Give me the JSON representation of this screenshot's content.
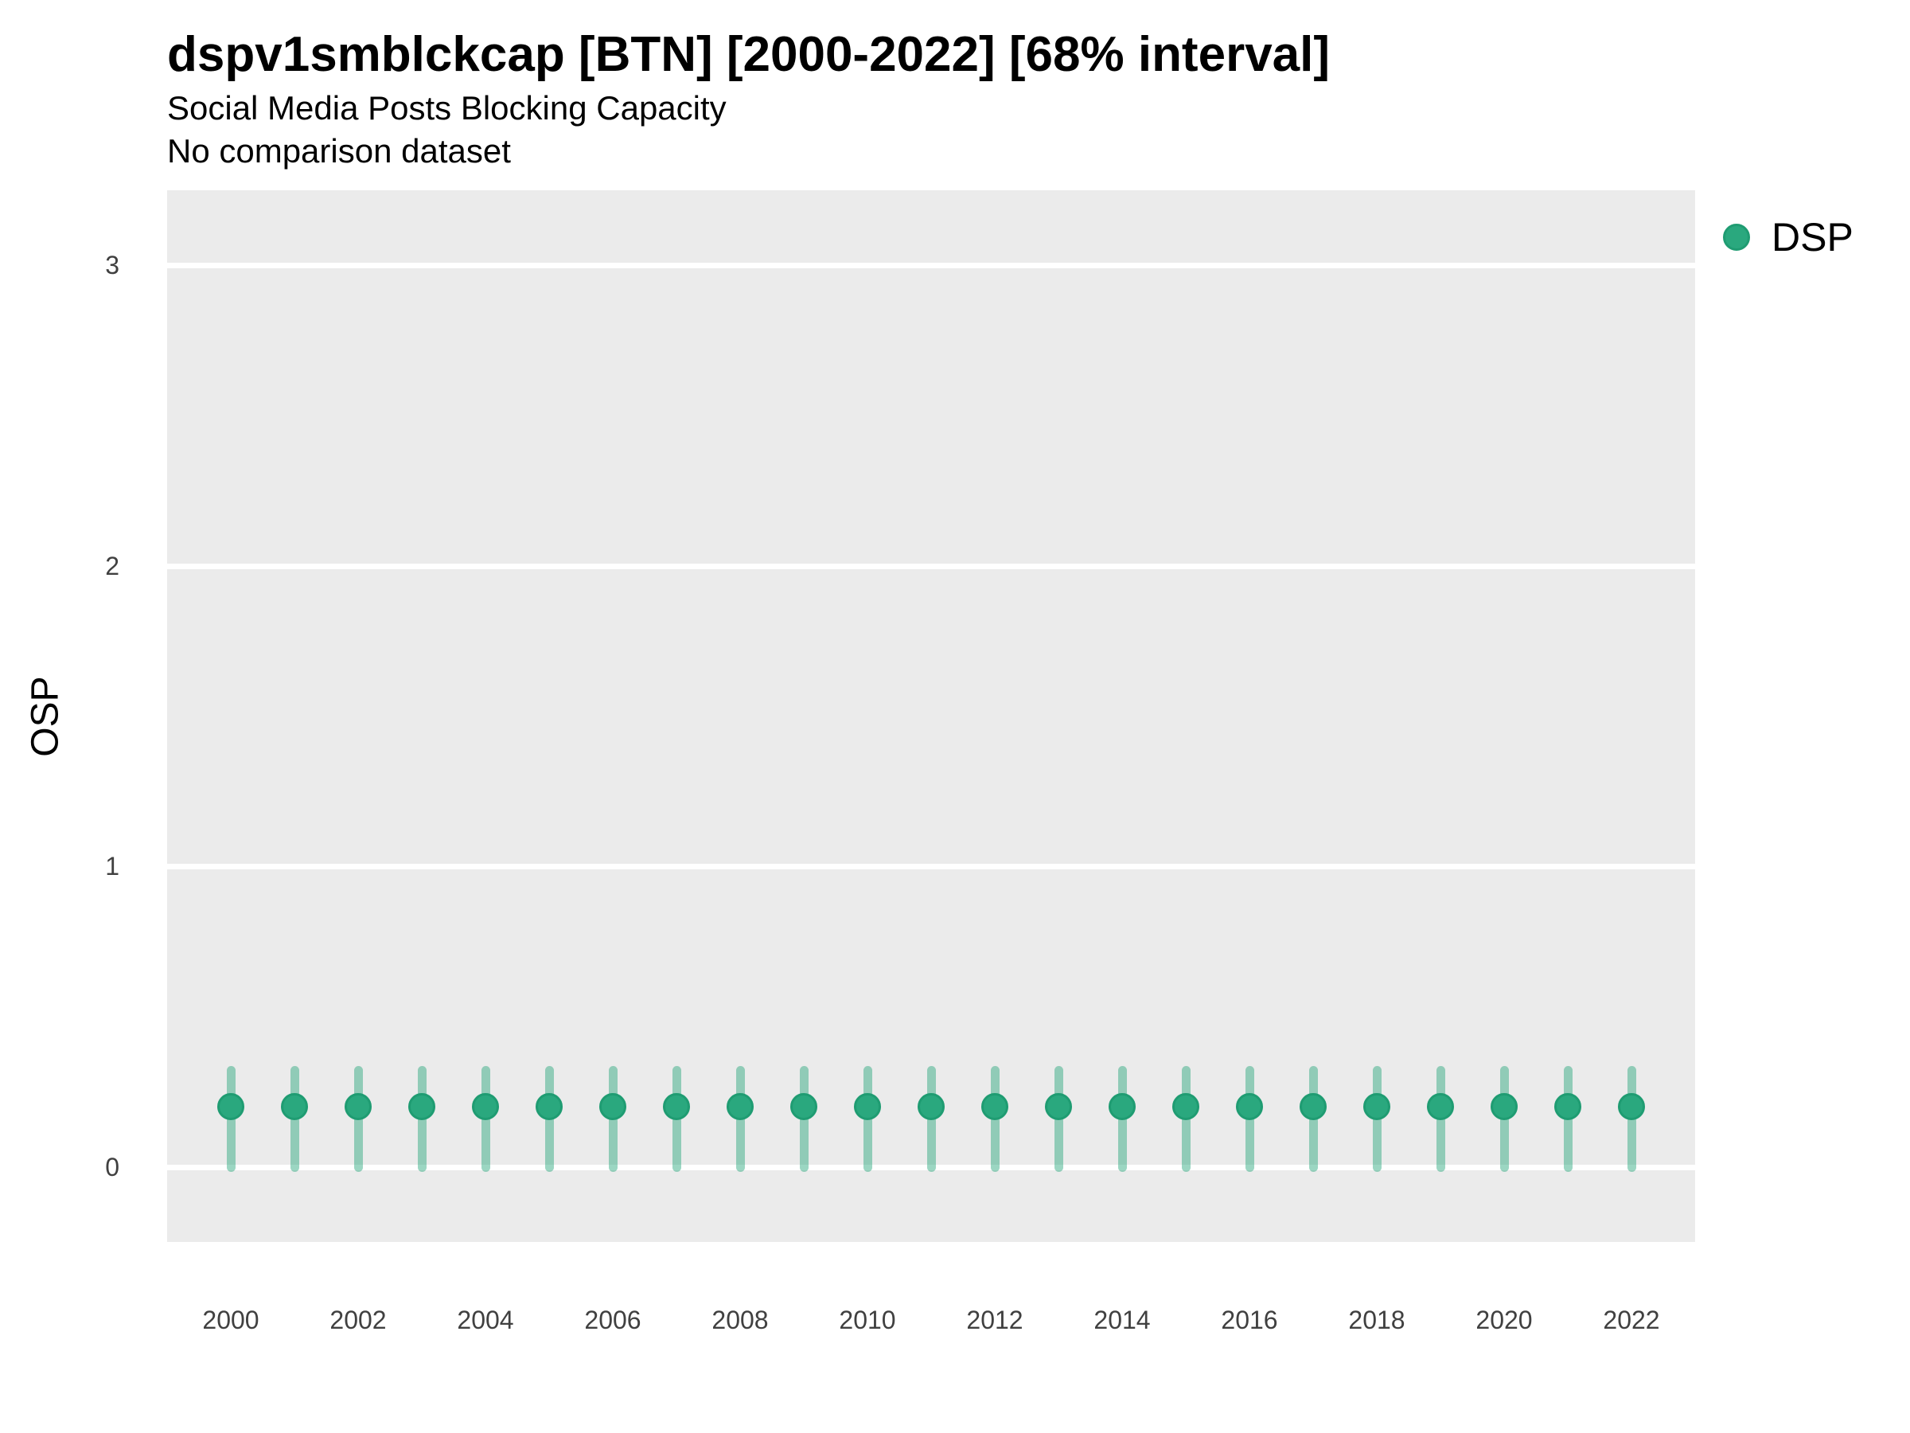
{
  "chart_data": {
    "type": "scatter",
    "title": "dspv1smblckcap [BTN] [2000-2022] [68% interval]",
    "subtitle": "Social Media Posts Blocking Capacity",
    "note": "No comparison dataset",
    "xlabel": "",
    "ylabel": "OSP",
    "xlim": [
      1999,
      2023
    ],
    "ylim": [
      -0.25,
      3.25
    ],
    "y_ticks": [
      0,
      1,
      2,
      3
    ],
    "x_tick_labels": [
      2000,
      2002,
      2004,
      2006,
      2008,
      2010,
      2012,
      2014,
      2016,
      2018,
      2020,
      2022
    ],
    "grid": "horizontal-major-only",
    "legend_position": "right-top",
    "legend": [
      {
        "label": "DSP",
        "color": "#2AA87E"
      }
    ],
    "series": [
      {
        "name": "DSP",
        "interval": "68%",
        "point_color": "#2AA87E",
        "point_stroke": "#1F9C72",
        "bar_color": "rgba(42,168,126,0.47)",
        "x": [
          2000,
          2001,
          2002,
          2003,
          2004,
          2005,
          2006,
          2007,
          2008,
          2009,
          2010,
          2011,
          2012,
          2013,
          2014,
          2015,
          2016,
          2017,
          2018,
          2019,
          2020,
          2021,
          2022
        ],
        "mean": [
          0.2,
          0.2,
          0.2,
          0.2,
          0.2,
          0.2,
          0.2,
          0.2,
          0.2,
          0.2,
          0.2,
          0.2,
          0.2,
          0.2,
          0.2,
          0.2,
          0.2,
          0.2,
          0.2,
          0.2,
          0.2,
          0.2,
          0.2
        ],
        "lower": [
          0.0,
          0.0,
          0.0,
          0.0,
          0.0,
          0.0,
          0.0,
          0.0,
          0.0,
          0.0,
          0.0,
          0.0,
          0.0,
          0.0,
          0.0,
          0.0,
          0.0,
          0.0,
          0.0,
          0.0,
          0.0,
          0.0,
          0.0
        ],
        "upper": [
          0.32,
          0.32,
          0.32,
          0.32,
          0.32,
          0.32,
          0.32,
          0.32,
          0.32,
          0.32,
          0.32,
          0.32,
          0.32,
          0.32,
          0.32,
          0.32,
          0.32,
          0.32,
          0.32,
          0.32,
          0.32,
          0.32,
          0.32
        ]
      }
    ],
    "style": {
      "panel_bg": "#EBEBEB",
      "gridline_color": "#FFFFFF",
      "tick_label_color": "#404040"
    }
  }
}
